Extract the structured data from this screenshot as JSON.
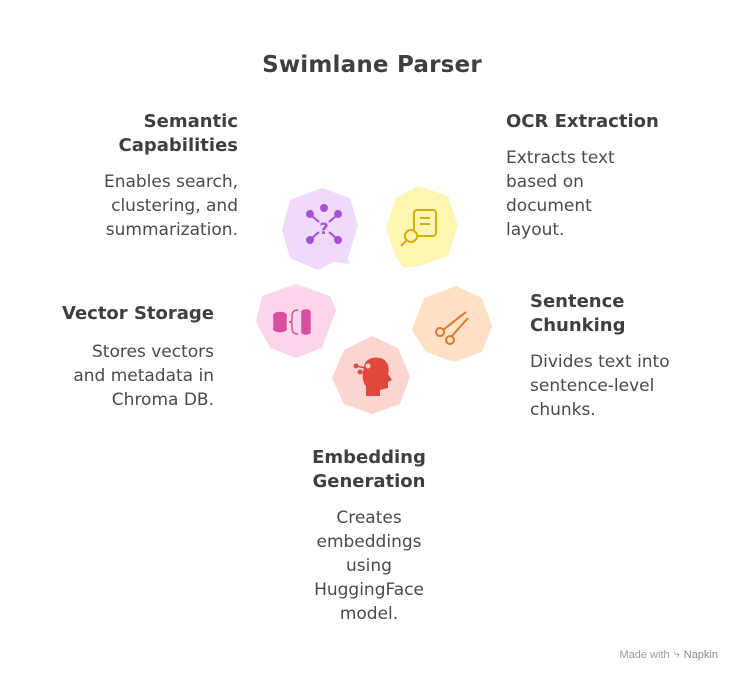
{
  "title": "Swimlane Parser",
  "nodes": {
    "semantic": {
      "heading": "Semantic\nCapabilities",
      "body": "Enables search,\nclustering, and\nsummarization.",
      "icon": "network-question-icon",
      "color": "#f0d9fb",
      "icon_color": "#a64fd9"
    },
    "ocr": {
      "heading": "OCR Extraction",
      "body": "Extracts text\nbased on\ndocument\nlayout.",
      "icon": "document-search-icon",
      "color": "#fdf6b3",
      "icon_color": "#d6b200"
    },
    "sentence": {
      "heading": "Sentence\nChunking",
      "body": "Divides text into\nsentence-level\nchunks.",
      "icon": "scissors-icon",
      "color": "#fde0c6",
      "icon_color": "#d9782b"
    },
    "embedding": {
      "heading": "Embedding\nGeneration",
      "body": "Creates\nembeddings\nusing\nHuggingFace\nmodel.",
      "icon": "head-network-icon",
      "color": "#fcd5d1",
      "icon_color": "#e0483b"
    },
    "vector": {
      "heading": "Vector Storage",
      "body": "Stores vectors\nand metadata in\nChroma DB.",
      "icon": "database-code-icon",
      "color": "#fbd6ea",
      "icon_color": "#d84ea0"
    }
  },
  "footer": {
    "prefix": "Made with",
    "brand": "Napkin"
  }
}
